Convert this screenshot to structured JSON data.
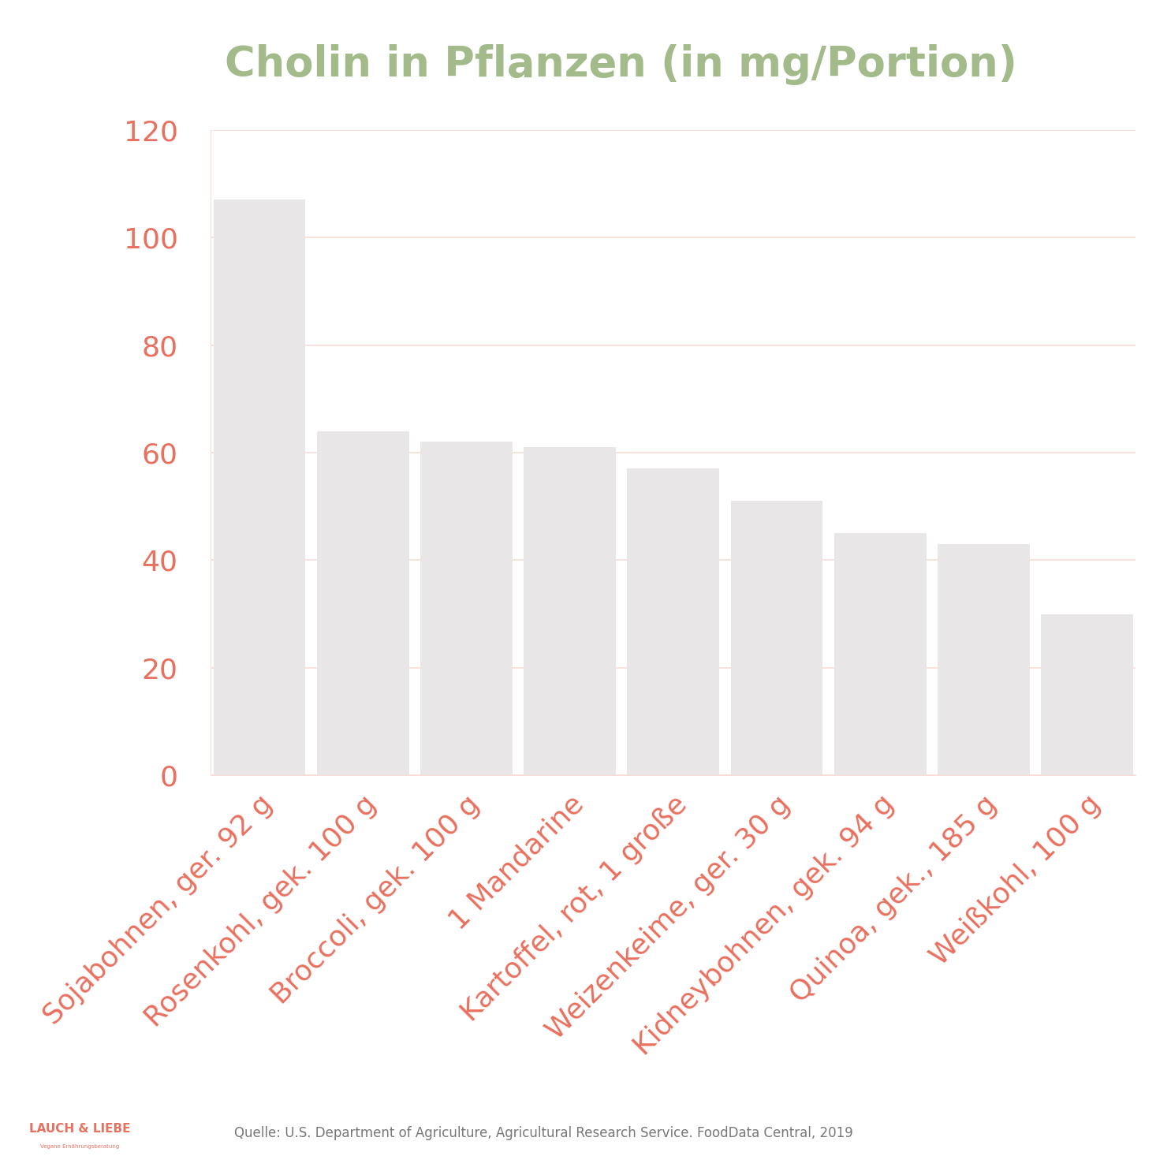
{
  "chart_data": {
    "type": "bar",
    "title": "Cholin in Pflanzen (in mg/Portion)",
    "categories": [
      "Sojabohnen, ger. 92 g",
      "Rosenkohl, gek. 100 g",
      "Broccoli, gek. 100 g",
      "1 Mandarine",
      "Kartoffel, rot, 1 große",
      "Weizenkeime, ger. 30 g",
      "Kidneybohnen, gek. 94 g",
      "Quinoa, gek., 185 g",
      "Weißkohl, 100 g"
    ],
    "values": [
      107,
      64,
      62,
      61,
      57,
      51,
      45,
      43,
      30
    ],
    "color": "#e8e6e7",
    "ylim": [
      0,
      120
    ],
    "yticks": [
      0,
      20,
      40,
      60,
      80,
      100,
      120
    ],
    "grid": true,
    "source": "Quelle: U.S. Department of Agriculture, Agricultural Research Service. FoodData Central, 2019",
    "annotations": [
      "LAUCH & LIEBE",
      "Vegane Ernährungsberatung"
    ]
  }
}
